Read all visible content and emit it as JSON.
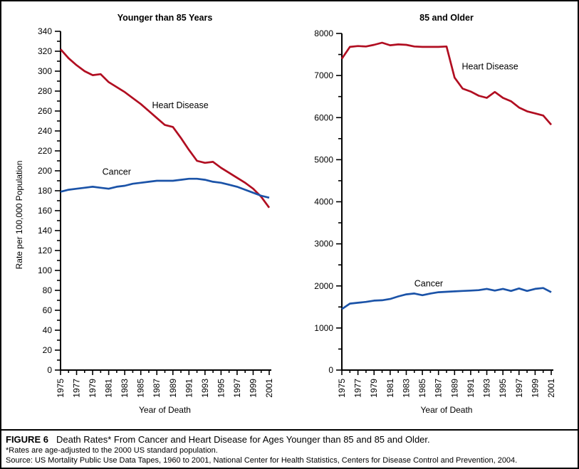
{
  "figure": {
    "caption_label": "FIGURE 6",
    "caption_title": "Death Rates* From Cancer and Heart Disease for Ages Younger than 85 and 85 and Older.",
    "footnote": "*Rates are age-adjusted to the 2000 US standard population.",
    "source": "Source: US Mortality Public Use Data Tapes, 1960 to 2001, National Center for Health Statistics, Centers for Disease Control and Prevention, 2004."
  },
  "colors": {
    "heart_disease": "#b10e21",
    "cancer": "#1b53a8",
    "axis": "#000000"
  },
  "chart_data": [
    {
      "type": "line",
      "title": "Younger than 85 Years",
      "xlabel": "Year of Death",
      "ylabel": "Rate per 100,000 Population",
      "xlim": [
        1975,
        2001
      ],
      "ylim": [
        0,
        340
      ],
      "ytick_major": 20,
      "ytick_minor": 10,
      "grid": false,
      "legend": "inline-labels",
      "x": [
        1975,
        1976,
        1977,
        1978,
        1979,
        1980,
        1981,
        1982,
        1983,
        1984,
        1985,
        1986,
        1987,
        1988,
        1989,
        1990,
        1991,
        1992,
        1993,
        1994,
        1995,
        1996,
        1997,
        1998,
        1999,
        2000,
        2001
      ],
      "xtick_labels": [
        1975,
        1977,
        1979,
        1981,
        1983,
        1985,
        1987,
        1989,
        1991,
        1993,
        1995,
        1997,
        1999,
        2001
      ],
      "series": [
        {
          "name": "Heart Disease",
          "color_key": "heart_disease",
          "values": [
            322,
            313,
            306,
            300,
            296,
            297,
            289,
            284,
            279,
            273,
            267,
            260,
            253,
            246,
            244,
            233,
            221,
            210,
            208,
            209,
            203,
            198,
            193,
            188,
            182,
            174,
            163
          ],
          "label_at": {
            "x": 1986.4,
            "y": 263
          }
        },
        {
          "name": "Cancer",
          "color_key": "cancer",
          "values": [
            179,
            181,
            182,
            183,
            184,
            183,
            182,
            184,
            185,
            187,
            188,
            189,
            190,
            190,
            190,
            191,
            192,
            192,
            191,
            189,
            188,
            186,
            184,
            181,
            178,
            175,
            173
          ],
          "label_at": {
            "x": 1980.2,
            "y": 196
          }
        }
      ]
    },
    {
      "type": "line",
      "title": "85 and Older",
      "xlabel": "Year of Death",
      "ylabel": "",
      "xlim": [
        1975,
        2001
      ],
      "ylim": [
        0,
        8000
      ],
      "ytick_major": 1000,
      "ytick_minor": 500,
      "grid": false,
      "legend": "inline-labels",
      "x": [
        1975,
        1976,
        1977,
        1978,
        1979,
        1980,
        1981,
        1982,
        1983,
        1984,
        1985,
        1986,
        1987,
        1988,
        1989,
        1990,
        1991,
        1992,
        1993,
        1994,
        1995,
        1996,
        1997,
        1998,
        1999,
        2000,
        2001
      ],
      "xtick_labels": [
        1975,
        1977,
        1979,
        1981,
        1983,
        1985,
        1987,
        1989,
        1991,
        1993,
        1995,
        1997,
        1999,
        2001
      ],
      "series": [
        {
          "name": "Heart Disease",
          "color_key": "heart_disease",
          "values": [
            7400,
            7680,
            7700,
            7690,
            7730,
            7780,
            7720,
            7740,
            7730,
            7690,
            7680,
            7680,
            7680,
            7690,
            6950,
            6690,
            6620,
            6520,
            6470,
            6610,
            6470,
            6390,
            6240,
            6150,
            6100,
            6050,
            5830
          ],
          "label_at": {
            "x": 1989.9,
            "y": 7150
          }
        },
        {
          "name": "Cancer",
          "color_key": "cancer",
          "values": [
            1450,
            1580,
            1600,
            1620,
            1650,
            1660,
            1690,
            1750,
            1800,
            1820,
            1780,
            1820,
            1850,
            1860,
            1870,
            1880,
            1890,
            1900,
            1930,
            1890,
            1930,
            1880,
            1940,
            1880,
            1930,
            1950,
            1850
          ],
          "label_at": {
            "x": 1984,
            "y": 1990
          }
        }
      ]
    }
  ]
}
